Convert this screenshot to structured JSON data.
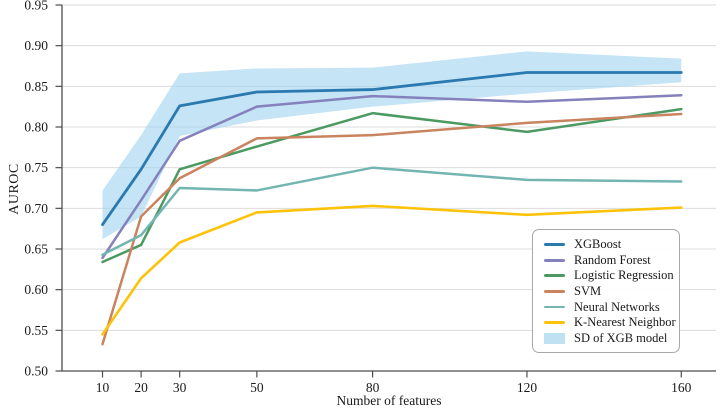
{
  "chart_data": {
    "type": "line",
    "title": "",
    "xlabel": "Number of features",
    "ylabel": "AUROC",
    "x": [
      10,
      20,
      30,
      50,
      80,
      120,
      160
    ],
    "xticks": [
      10,
      20,
      30,
      50,
      80,
      120,
      160
    ],
    "yticks": [
      0.5,
      0.55,
      0.6,
      0.65,
      0.7,
      0.75,
      0.8,
      0.85,
      0.9,
      0.95
    ],
    "xlim": [
      -0.5,
      169
    ],
    "ylim": [
      0.5,
      0.95
    ],
    "grid": "horizontal",
    "legend_position": "lower right",
    "series": [
      {
        "name": "XGBoost",
        "color": "#2a7ab0",
        "width": 2.8,
        "values": [
          0.68,
          0.748,
          0.826,
          0.843,
          0.846,
          0.867,
          0.867
        ]
      },
      {
        "name": "Random Forest",
        "color": "#8481bd",
        "width": 2.5,
        "values": [
          0.639,
          0.71,
          0.783,
          0.825,
          0.838,
          0.831,
          0.839
        ]
      },
      {
        "name": "Logistic Regression",
        "color": "#4c9a62",
        "width": 2.5,
        "values": [
          0.634,
          0.655,
          0.748,
          0.776,
          0.817,
          0.794,
          0.822
        ]
      },
      {
        "name": "SVM",
        "color": "#c9845f",
        "width": 2.5,
        "values": [
          0.533,
          0.69,
          0.737,
          0.786,
          0.79,
          0.805,
          0.816
        ]
      },
      {
        "name": "Neural Networks",
        "color": "#73b5b1",
        "width": 2.5,
        "values": [
          0.643,
          0.667,
          0.725,
          0.722,
          0.75,
          0.735,
          0.733
        ]
      },
      {
        "name": "K-Nearest Neighbor",
        "color": "#fdc30a",
        "width": 2.6,
        "values": [
          0.545,
          0.614,
          0.658,
          0.695,
          0.703,
          0.692,
          0.701
        ]
      }
    ],
    "band": {
      "label": "SD of XGB model",
      "series": "XGBoost",
      "color": "#9fd2ee",
      "opacity": 0.6,
      "swatch_color": "#bfe2f3",
      "lower": [
        0.662,
        0.69,
        0.789,
        0.808,
        0.825,
        0.841,
        0.855
      ],
      "upper": [
        0.722,
        0.79,
        0.866,
        0.872,
        0.873,
        0.893,
        0.884
      ]
    },
    "colors": {
      "grid": "#dcdcdc",
      "spine": "#4d4d4d",
      "top_spine": "#d9d9d9",
      "tick_text": "#1a1a1a"
    }
  }
}
